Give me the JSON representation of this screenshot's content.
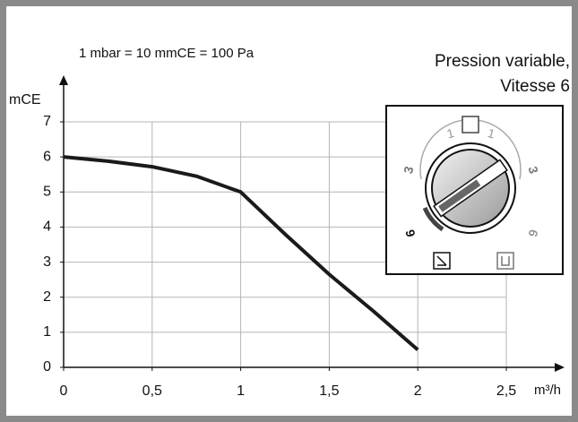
{
  "chart_data": {
    "type": "line",
    "annotation": "1 mbar = 10 mmCE = 100 Pa",
    "inset_title": [
      "Pression variable,",
      "Vitesse 6"
    ],
    "dial_labels": [
      "1",
      "1",
      "3",
      "3",
      "6",
      "6"
    ],
    "y_label": "mCE",
    "x_label": "m³/h",
    "x": [
      0,
      0.25,
      0.5,
      0.75,
      1,
      1.25,
      1.5,
      1.75,
      2
    ],
    "series": [
      {
        "color": "#1a1a1a",
        "values": [
          6,
          5.88,
          5.72,
          5.45,
          5.0,
          3.8,
          2.65,
          1.6,
          0.5
        ]
      }
    ],
    "xlim": [
      0,
      2.5
    ],
    "ylim": [
      0,
      7
    ],
    "xticks": [
      0,
      {
        "value": 0.5,
        "label": "0,5"
      },
      1,
      {
        "value": 1.5,
        "label": "1,5"
      },
      2,
      {
        "value": 2.5,
        "label": "2,5"
      }
    ],
    "yticks": [
      0,
      1,
      2,
      3,
      4,
      5,
      6,
      7
    ],
    "grid": true
  }
}
